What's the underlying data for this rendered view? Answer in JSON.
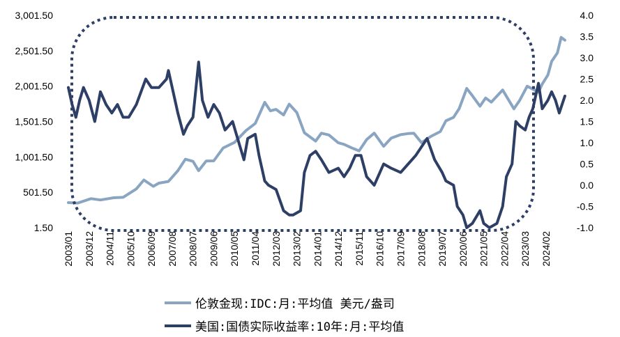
{
  "chart_data": {
    "type": "line",
    "colors": {
      "gold": "#8aa5c2",
      "yield": "#2e3f66",
      "highlight": "#2e3f66"
    },
    "highlight_box": "dotted-rounded-rect",
    "left_axis": {
      "ticks": [
        "3,001.50",
        "2,501.50",
        "2,001.50",
        "1,501.50",
        "1,001.50",
        "501.50",
        "1.50"
      ],
      "range": [
        1.5,
        3001.5
      ]
    },
    "right_axis": {
      "ticks": [
        "4.0",
        "3.5",
        "3.0",
        "2.5",
        "2.0",
        "1.5",
        "1.0",
        "0.5",
        "0.0",
        "-0.5",
        "-1.0"
      ],
      "range": [
        -1.0,
        4.0
      ]
    },
    "x_ticks": [
      "2003/01",
      "2003/12",
      "2004/11",
      "2005/10",
      "2006/09",
      "2007/08",
      "2008/07",
      "2009/06",
      "2010/05",
      "2011/04",
      "2012/03",
      "2013/02",
      "2014/01",
      "2014/12",
      "2015/11",
      "2016/10",
      "2017/09",
      "2018/08",
      "2019/07",
      "2020/06",
      "2021/05",
      "2022/04",
      "2023/03",
      "2024/02"
    ],
    "x_range": [
      "2003/01",
      "2024/12"
    ],
    "series": [
      {
        "name": "伦敦金现:IDC:月:平均值 美元/盎司",
        "axis": "left",
        "color": "#8aa5c2",
        "points": [
          [
            "2003/01",
            356
          ],
          [
            "2003/06",
            350
          ],
          [
            "2004/01",
            412
          ],
          [
            "2004/06",
            393
          ],
          [
            "2005/01",
            424
          ],
          [
            "2005/06",
            430
          ],
          [
            "2006/01",
            549
          ],
          [
            "2006/05",
            675
          ],
          [
            "2006/10",
            586
          ],
          [
            "2007/01",
            631
          ],
          [
            "2007/06",
            655
          ],
          [
            "2007/11",
            806
          ],
          [
            "2008/03",
            968
          ],
          [
            "2008/07",
            939
          ],
          [
            "2008/10",
            807
          ],
          [
            "2009/02",
            943
          ],
          [
            "2009/06",
            946
          ],
          [
            "2009/11",
            1128
          ],
          [
            "2010/05",
            1205
          ],
          [
            "2010/11",
            1372
          ],
          [
            "2011/04",
            1474
          ],
          [
            "2011/09",
            1772
          ],
          [
            "2011/12",
            1652
          ],
          [
            "2012/03",
            1673
          ],
          [
            "2012/07",
            1594
          ],
          [
            "2012/10",
            1746
          ],
          [
            "2013/02",
            1628
          ],
          [
            "2013/06",
            1343
          ],
          [
            "2013/12",
            1225
          ],
          [
            "2014/03",
            1336
          ],
          [
            "2014/07",
            1312
          ],
          [
            "2014/12",
            1201
          ],
          [
            "2015/03",
            1179
          ],
          [
            "2015/07",
            1130
          ],
          [
            "2015/11",
            1086
          ],
          [
            "2016/03",
            1246
          ],
          [
            "2016/07",
            1337
          ],
          [
            "2016/12",
            1151
          ],
          [
            "2017/04",
            1266
          ],
          [
            "2017/09",
            1316
          ],
          [
            "2018/01",
            1331
          ],
          [
            "2018/04",
            1335
          ],
          [
            "2018/08",
            1202
          ],
          [
            "2019/01",
            1291
          ],
          [
            "2019/06",
            1359
          ],
          [
            "2019/09",
            1511
          ],
          [
            "2020/01",
            1560
          ],
          [
            "2020/04",
            1683
          ],
          [
            "2020/08",
            1969
          ],
          [
            "2020/11",
            1866
          ],
          [
            "2021/03",
            1718
          ],
          [
            "2021/06",
            1834
          ],
          [
            "2021/09",
            1775
          ],
          [
            "2022/03",
            1947
          ],
          [
            "2022/09",
            1681
          ],
          [
            "2022/12",
            1798
          ],
          [
            "2023/04",
            2000
          ],
          [
            "2023/10",
            1916
          ],
          [
            "2023/12",
            2031
          ],
          [
            "2024/03",
            2159
          ],
          [
            "2024/05",
            2351
          ],
          [
            "2024/08",
            2470
          ],
          [
            "2024/10",
            2690
          ],
          [
            "2024/12",
            2650
          ]
        ]
      },
      {
        "name": "美国:国债实际收益率:10年:月:平均值",
        "axis": "right",
        "color": "#2e3f66",
        "points": [
          [
            "2003/01",
            2.3
          ],
          [
            "2003/03",
            1.9
          ],
          [
            "2003/05",
            1.6
          ],
          [
            "2003/07",
            2.0
          ],
          [
            "2003/09",
            2.3
          ],
          [
            "2003/12",
            2.0
          ],
          [
            "2004/03",
            1.5
          ],
          [
            "2004/06",
            2.2
          ],
          [
            "2004/09",
            1.9
          ],
          [
            "2004/12",
            1.7
          ],
          [
            "2005/03",
            1.9
          ],
          [
            "2005/06",
            1.6
          ],
          [
            "2005/09",
            1.6
          ],
          [
            "2006/01",
            1.9
          ],
          [
            "2006/06",
            2.5
          ],
          [
            "2006/09",
            2.3
          ],
          [
            "2007/01",
            2.3
          ],
          [
            "2007/05",
            2.5
          ],
          [
            "2007/06",
            2.7
          ],
          [
            "2007/08",
            2.3
          ],
          [
            "2007/11",
            1.7
          ],
          [
            "2008/02",
            1.2
          ],
          [
            "2008/04",
            1.4
          ],
          [
            "2008/07",
            1.6
          ],
          [
            "2008/10",
            2.9
          ],
          [
            "2008/12",
            2.0
          ],
          [
            "2009/03",
            1.6
          ],
          [
            "2009/06",
            1.9
          ],
          [
            "2009/09",
            1.7
          ],
          [
            "2009/12",
            1.3
          ],
          [
            "2010/04",
            1.5
          ],
          [
            "2010/06",
            1.2
          ],
          [
            "2010/10",
            0.6
          ],
          [
            "2010/12",
            1.1
          ],
          [
            "2011/04",
            1.2
          ],
          [
            "2011/06",
            0.7
          ],
          [
            "2011/09",
            0.1
          ],
          [
            "2011/11",
            0.0
          ],
          [
            "2012/03",
            -0.1
          ],
          [
            "2012/07",
            -0.6
          ],
          [
            "2012/10",
            -0.7
          ],
          [
            "2012/12",
            -0.7
          ],
          [
            "2013/04",
            -0.6
          ],
          [
            "2013/06",
            0.3
          ],
          [
            "2013/09",
            0.7
          ],
          [
            "2013/12",
            0.8
          ],
          [
            "2014/03",
            0.6
          ],
          [
            "2014/07",
            0.3
          ],
          [
            "2014/12",
            0.4
          ],
          [
            "2015/03",
            0.2
          ],
          [
            "2015/06",
            0.4
          ],
          [
            "2015/09",
            0.7
          ],
          [
            "2015/12",
            0.7
          ],
          [
            "2016/03",
            0.2
          ],
          [
            "2016/07",
            0.0
          ],
          [
            "2016/12",
            0.5
          ],
          [
            "2017/04",
            0.4
          ],
          [
            "2017/09",
            0.3
          ],
          [
            "2018/01",
            0.5
          ],
          [
            "2018/05",
            0.7
          ],
          [
            "2018/11",
            1.1
          ],
          [
            "2019/03",
            0.6
          ],
          [
            "2019/07",
            0.3
          ],
          [
            "2019/09",
            0.1
          ],
          [
            "2020/01",
            0.0
          ],
          [
            "2020/03",
            -0.5
          ],
          [
            "2020/06",
            -0.7
          ],
          [
            "2020/08",
            -1.0
          ],
          [
            "2020/11",
            -0.9
          ],
          [
            "2021/03",
            -0.6
          ],
          [
            "2021/05",
            -0.9
          ],
          [
            "2021/08",
            -1.0
          ],
          [
            "2021/12",
            -0.9
          ],
          [
            "2022/03",
            -0.5
          ],
          [
            "2022/05",
            0.2
          ],
          [
            "2022/08",
            0.5
          ],
          [
            "2022/10",
            1.5
          ],
          [
            "2022/12",
            1.4
          ],
          [
            "2023/03",
            1.3
          ],
          [
            "2023/05",
            1.6
          ],
          [
            "2023/07",
            1.8
          ],
          [
            "2023/10",
            2.4
          ],
          [
            "2023/12",
            1.8
          ],
          [
            "2024/03",
            2.0
          ],
          [
            "2024/05",
            2.2
          ],
          [
            "2024/07",
            2.0
          ],
          [
            "2024/09",
            1.7
          ],
          [
            "2024/12",
            2.1
          ]
        ]
      }
    ]
  }
}
